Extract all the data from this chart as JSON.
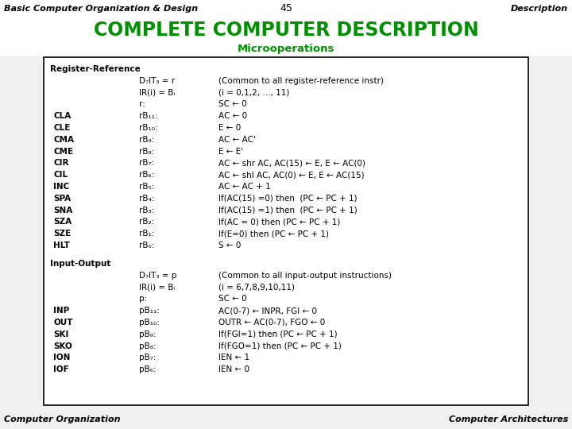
{
  "top_left": "Basic Computer Organization & Design",
  "top_center": "45",
  "top_right": "Description",
  "title": "COMPLETE COMPUTER DESCRIPTION",
  "subtitle": "Microoperations",
  "bottom_left": "Computer Organization",
  "bottom_right": "Computer Architectures",
  "bg_color": "#f0f0f0",
  "title_color": "#009000",
  "subtitle_color": "#009000",
  "text_color": "#000000",
  "content": [
    {
      "section": "Register-Reference"
    },
    {
      "col1": "",
      "col2": "D₇IT₃ = r",
      "col3": "(Common to all register-reference instr)"
    },
    {
      "col1": "",
      "col2": "IR(i) = Bᵢ",
      "col3": "(i = 0,1,2, ..., 11)"
    },
    {
      "col1": "",
      "col2": "r:",
      "col3": "SC ← 0"
    },
    {
      "col1": "CLA",
      "col2": "rB₁₁:",
      "col3": "AC ← 0"
    },
    {
      "col1": "CLE",
      "col2": "rB₁₀:",
      "col3": "E ← 0"
    },
    {
      "col1": "CMA",
      "col2": "rB₉:",
      "col3": "AC ← AC'"
    },
    {
      "col1": "CME",
      "col2": "rB₈:",
      "col3": "E ← E'"
    },
    {
      "col1": "CIR",
      "col2": "rB₇:",
      "col3": "AC ← shr AC, AC(15) ← E, E ← AC(0)"
    },
    {
      "col1": "CIL",
      "col2": "rB₆:",
      "col3": "AC ← shl AC, AC(0) ← E, E ← AC(15)"
    },
    {
      "col1": "INC",
      "col2": "rB₅:",
      "col3": "AC ← AC + 1"
    },
    {
      "col1": "SPA",
      "col2": "rB₄:",
      "col3": "If(AC(15) =0) then  (PC ← PC + 1)"
    },
    {
      "col1": "SNA",
      "col2": "rB₃:",
      "col3": "If(AC(15) =1) then  (PC ← PC + 1)"
    },
    {
      "col1": "SZA",
      "col2": "rB₂:",
      "col3": "If(AC = 0) then (PC ← PC + 1)"
    },
    {
      "col1": "SZE",
      "col2": "rB₁:",
      "col3": "If(E=0) then (PC ← PC + 1)"
    },
    {
      "col1": "HLT",
      "col2": "rB₀:",
      "col3": "S ← 0"
    },
    {
      "spacer": true
    },
    {
      "section": "Input-Output"
    },
    {
      "col1": "",
      "col2": "D₇IT₃ = p",
      "col3": "(Common to all input-output instructions)"
    },
    {
      "col1": "",
      "col2": "IR(i) = Bᵢ",
      "col3": "(i = 6,7,8,9,10,11)"
    },
    {
      "col1": "",
      "col2": "p:",
      "col3": "SC ← 0"
    },
    {
      "col1": "INP",
      "col2": "pB₁₁:",
      "col3": "AC(0-7) ← INPR, FGI ← 0"
    },
    {
      "col1": "OUT",
      "col2": "pB₁₀:",
      "col3": "OUTR ← AC(0-7), FGO ← 0"
    },
    {
      "col1": "SKI",
      "col2": "pB₉:",
      "col3": "If(FGI=1) then (PC ← PC + 1)"
    },
    {
      "col1": "SKO",
      "col2": "pB₈:",
      "col3": "If(FGO=1) then (PC ← PC + 1)"
    },
    {
      "col1": "ION",
      "col2": "pB₇:",
      "col3": "IEN ← 1"
    },
    {
      "col1": "IOF",
      "col2": "pB₆:",
      "col3": "IEN ← 0"
    }
  ]
}
